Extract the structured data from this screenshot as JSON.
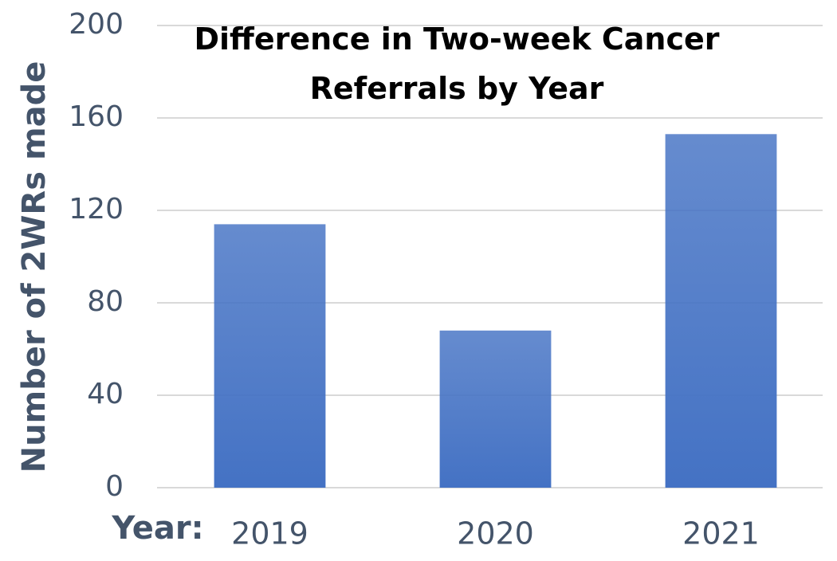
{
  "chart_data": {
    "type": "bar",
    "title": "Difference in Two-week Cancer Referrals by Year",
    "y_label": "Number of 2WRs made",
    "x_label": "Year:",
    "categories": [
      "2019",
      "2020",
      "2021"
    ],
    "values": [
      114,
      68,
      153
    ],
    "color": "#4472c4",
    "ylim": [
      0,
      200
    ],
    "yticks": [
      0,
      40,
      80,
      120,
      160,
      200
    ],
    "grid": true
  }
}
